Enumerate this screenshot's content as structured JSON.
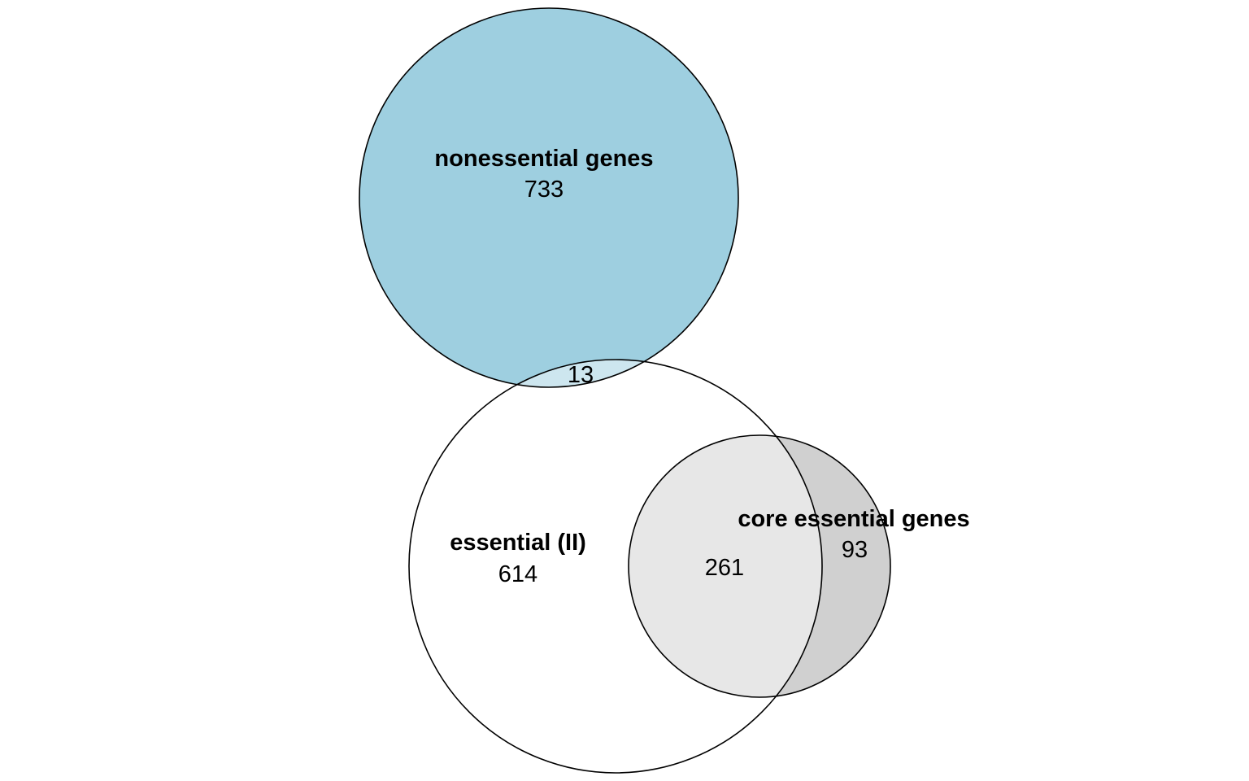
{
  "diagram": {
    "type": "venn",
    "sets": [
      {
        "id": "nonessential",
        "label": "nonessential genes",
        "size": 746,
        "color": "#9ecfe0"
      },
      {
        "id": "essential_ii",
        "label": "essential (II)",
        "size": 888,
        "color": "#ffffff"
      },
      {
        "id": "core_essential",
        "label": "core essential genes",
        "size": 354,
        "color": "#d0d0d0"
      }
    ],
    "regions": {
      "nonessential_only": "733",
      "nonessential_essential_overlap": "13",
      "essential_only": "614",
      "essential_core_overlap": "261",
      "core_only": "93"
    },
    "colors": {
      "nonessential_fill": "#9ecfe0",
      "overlap_ne_fill": "#cde6ef",
      "core_only_fill": "#d0d0d0",
      "core_overlap_fill": "#e7e7e7",
      "outline": "#000000"
    }
  }
}
